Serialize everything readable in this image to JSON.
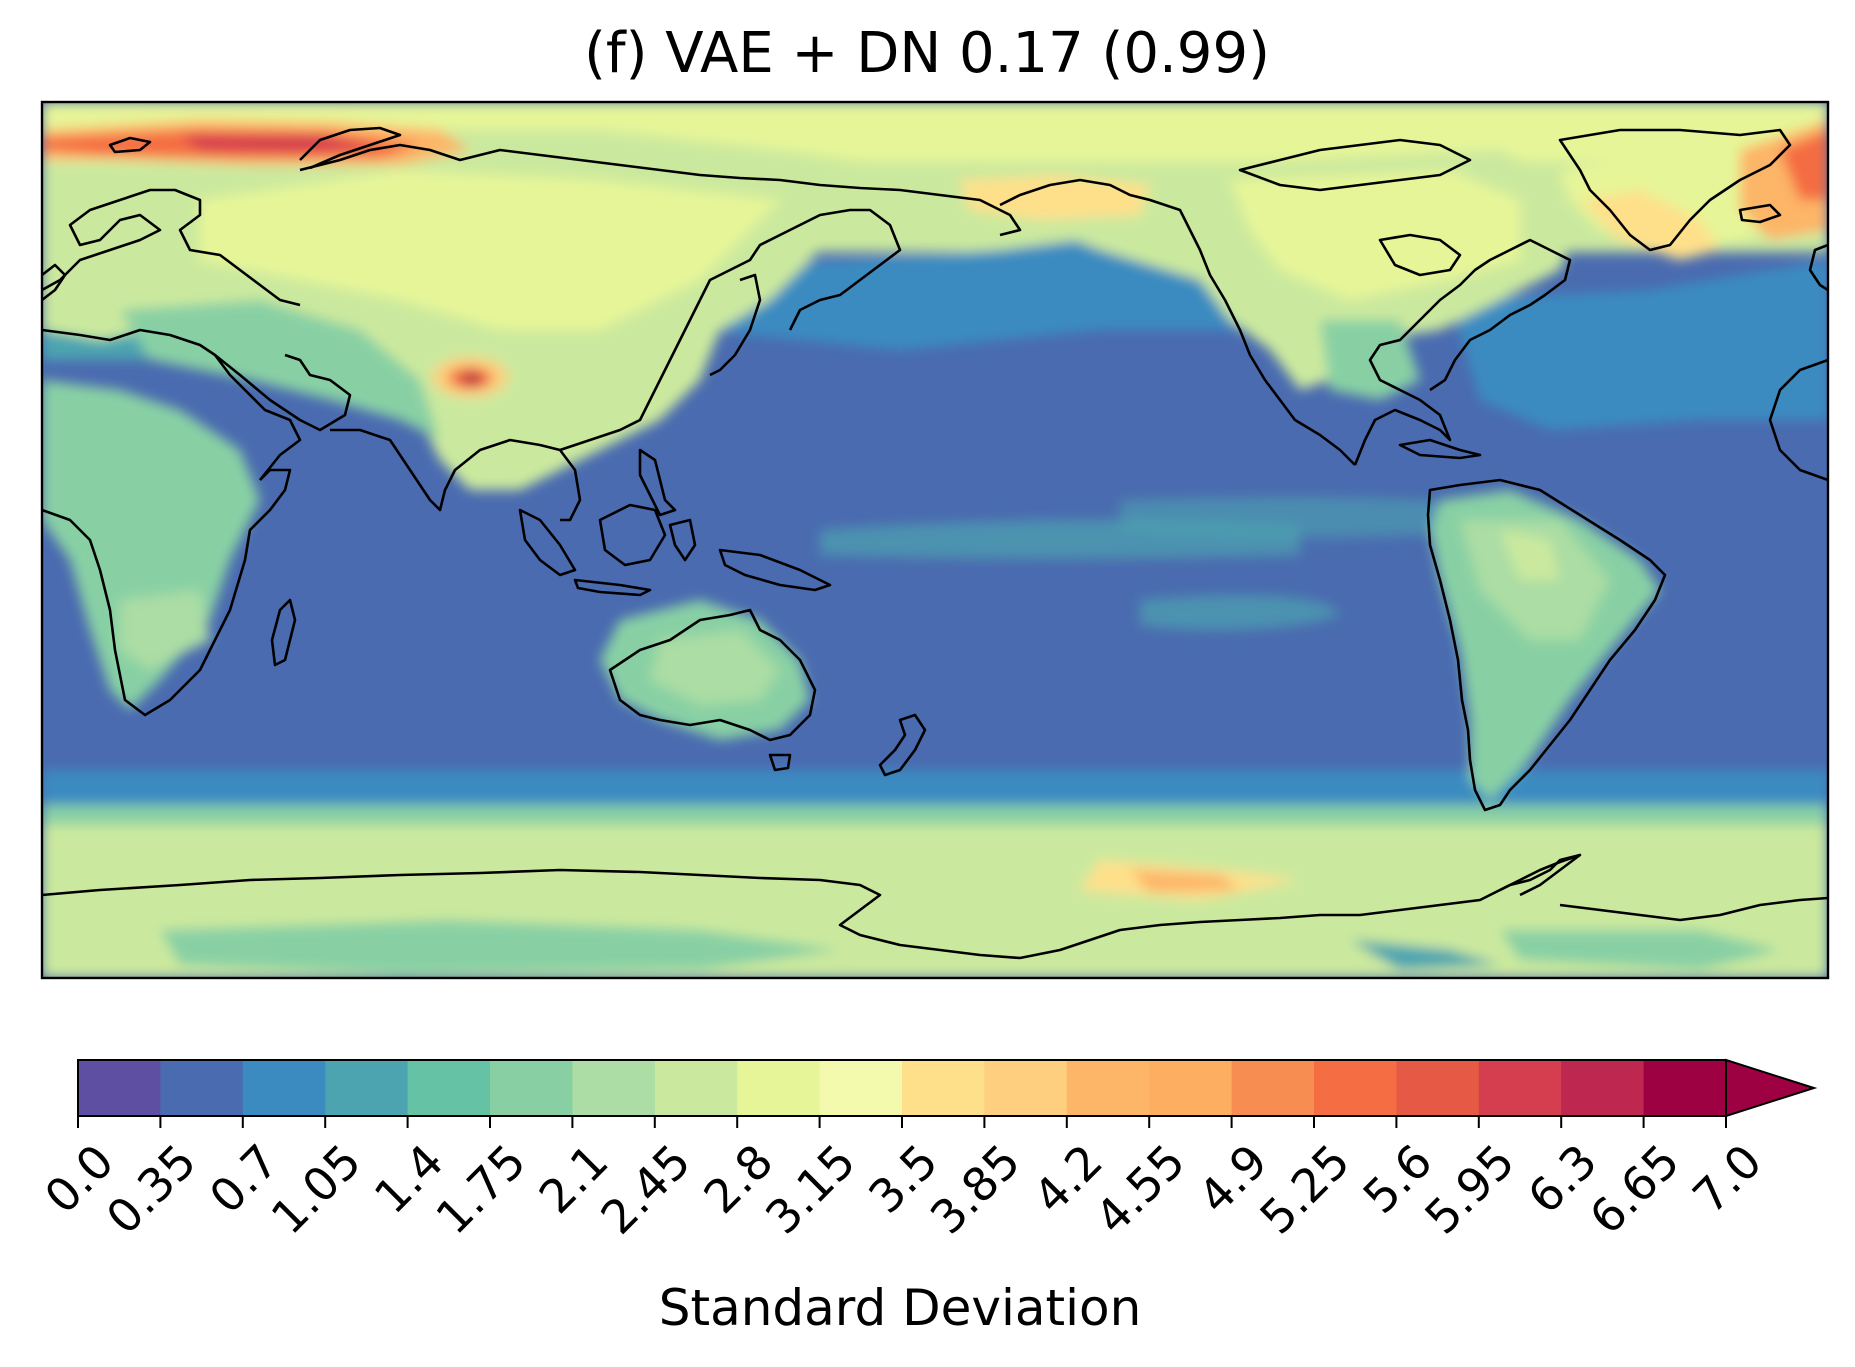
{
  "map": {
    "title": "(f) VAE + DN  0.17 (0.99)",
    "projection": "PlateCarree, centered on the Pacific (central longitude 150°E)",
    "variable": "Standard Deviation",
    "ocean_base_color": "#4a6bb0",
    "land_line_color": "#000000"
  },
  "colorbar": {
    "label": "Standard Deviation",
    "extend": "max",
    "ticks": [
      "0.0",
      "0.35",
      "0.7",
      "1.05",
      "1.4",
      "1.75",
      "2.1",
      "2.45",
      "2.8",
      "3.15",
      "3.5",
      "3.85",
      "4.2",
      "4.55",
      "4.9",
      "5.25",
      "5.6",
      "5.95",
      "6.3",
      "6.65",
      "7.0"
    ],
    "colors": [
      "#5e4fa2",
      "#4a6bb0",
      "#3b8bc1",
      "#4ca4b0",
      "#66c2a5",
      "#88d0a4",
      "#abdda4",
      "#cbe99e",
      "#e6f598",
      "#f3faad",
      "#fee08b",
      "#fdcf7e",
      "#fdb567",
      "#fdae61",
      "#f88d52",
      "#f46d43",
      "#e65a45",
      "#d53e4f",
      "#bd2750",
      "#9e0142"
    ],
    "extend_color": "#9e0142"
  }
}
